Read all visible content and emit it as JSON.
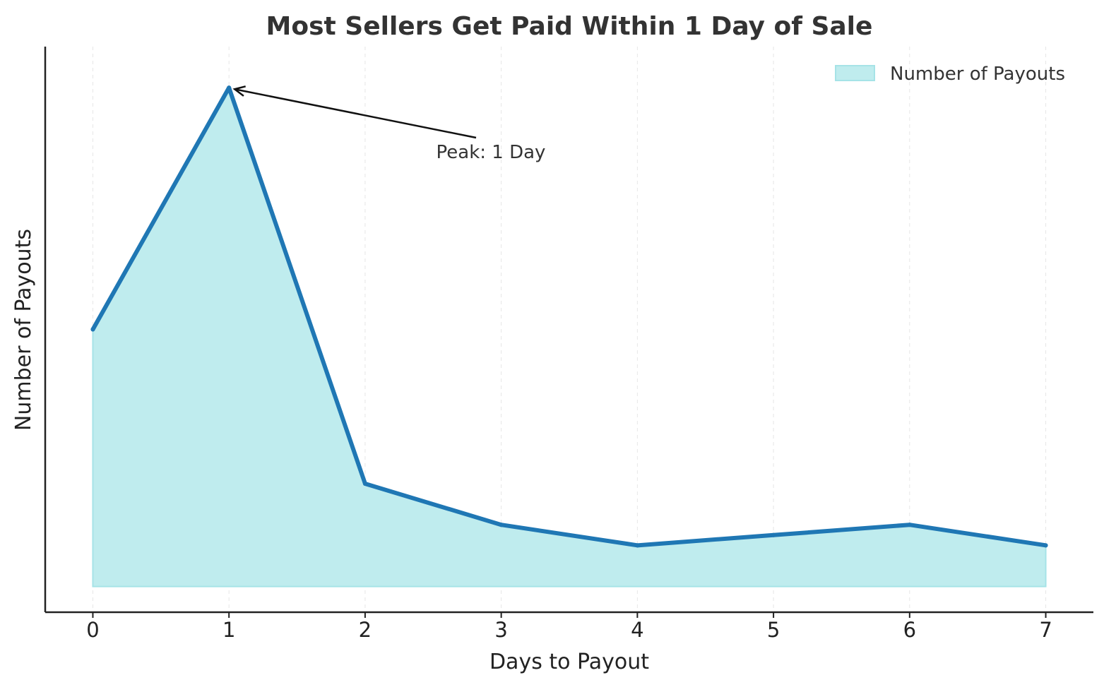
{
  "chart_data": {
    "type": "area",
    "title": "Most Sellers Get Paid Within 1 Day of Sale",
    "xlabel": "Days to Payout",
    "ylabel": "Number of Payouts",
    "x": [
      0,
      1,
      2,
      3,
      4,
      5,
      6,
      7
    ],
    "x_tick_labels": [
      "0",
      "1",
      "2",
      "3",
      "4",
      "5",
      "6",
      "7"
    ],
    "xlim": [
      -0.35,
      7.35
    ],
    "ylim": [
      -5,
      105
    ],
    "y_ticks_shown": false,
    "series": [
      {
        "name": "Number of Payouts",
        "values": [
          50,
          97,
          20,
          12,
          8,
          10,
          12,
          8
        ],
        "line_color": "#1f77b4",
        "fill_color": "#bfecee"
      }
    ],
    "legend": {
      "placement": "top-right",
      "entries": [
        "Number of Payouts"
      ]
    },
    "annotation": {
      "text": "Peak: 1 Day",
      "x": 1,
      "y": 97
    },
    "grid": {
      "x": true,
      "y": false,
      "style": "dashed"
    },
    "colors": {
      "line": "#1f77b4",
      "fill": "#bfecee",
      "fill_edge": "#a6e3e7",
      "axis": "#222222",
      "grid": "#e6e6e6"
    }
  }
}
